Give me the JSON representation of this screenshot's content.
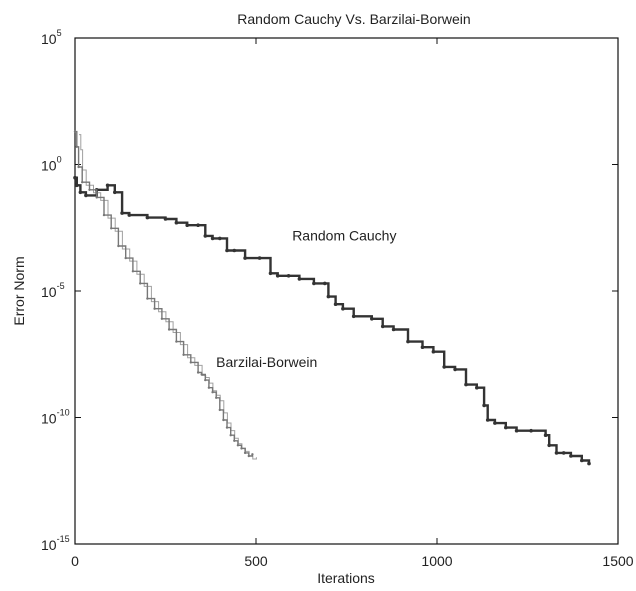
{
  "chart_data": {
    "type": "line",
    "title": "Random Cauchy Vs. Barzilai-Borwein",
    "xlabel": "Iterations",
    "ylabel": "Error Norm",
    "xlim": [
      0,
      1500
    ],
    "ylim": [
      1e-15,
      100000.0
    ],
    "yscale": "log",
    "x_ticks": [
      {
        "value": 0,
        "label": "0"
      },
      {
        "value": 500,
        "label": "500"
      },
      {
        "value": 1000,
        "label": "1000"
      },
      {
        "value": 1500,
        "label": "1500"
      }
    ],
    "y_ticks": [
      {
        "value": 100000.0,
        "base": "10",
        "exp": "5"
      },
      {
        "value": 1,
        "base": "10",
        "exp": "0"
      },
      {
        "value": 1e-05,
        "base": "10",
        "exp": "-5"
      },
      {
        "value": 1e-10,
        "base": "10",
        "exp": "-10"
      },
      {
        "value": 1e-15,
        "base": "10",
        "exp": "-15"
      }
    ],
    "grid": false,
    "series": [
      {
        "name": "Random Cauchy",
        "color": "#333333",
        "label_at": {
          "x": 600,
          "y": 0.001
        },
        "x": [
          0,
          5,
          15,
          30,
          60,
          90,
          110,
          130,
          150,
          200,
          250,
          280,
          310,
          340,
          360,
          380,
          400,
          420,
          440,
          470,
          510,
          540,
          560,
          590,
          620,
          660,
          690,
          700,
          720,
          740,
          770,
          820,
          850,
          880,
          920,
          960,
          990,
          1020,
          1050,
          1080,
          1110,
          1130,
          1140,
          1160,
          1190,
          1220,
          1260,
          1300,
          1310,
          1330,
          1350,
          1370,
          1400,
          1420
        ],
        "y": [
          0.3,
          0.15,
          0.08,
          0.06,
          0.1,
          0.15,
          0.08,
          0.012,
          0.01,
          0.008,
          0.007,
          0.005,
          0.004,
          0.004,
          0.0015,
          0.0012,
          0.0012,
          0.0004,
          0.0004,
          0.0002,
          0.0002,
          5e-05,
          4e-05,
          4e-05,
          3e-05,
          2e-05,
          2e-05,
          6e-06,
          3e-06,
          2e-06,
          1e-06,
          8e-07,
          4e-07,
          3e-07,
          1e-07,
          6e-08,
          4e-08,
          1e-08,
          8e-09,
          2e-09,
          1.5e-09,
          3e-10,
          8e-11,
          6e-11,
          4e-11,
          3e-11,
          3e-11,
          2e-11,
          8e-12,
          4e-12,
          4e-12,
          3e-12,
          2e-12,
          1.5e-12
        ]
      },
      {
        "name": "Barzilai-Borwein",
        "color": "#777777",
        "label_at": {
          "x": 390,
          "y": 1e-08
        },
        "x": [
          0,
          5,
          10,
          20,
          40,
          60,
          80,
          100,
          120,
          140,
          160,
          180,
          200,
          220,
          240,
          260,
          280,
          300,
          320,
          340,
          350,
          360,
          370,
          380,
          390,
          400,
          410,
          420,
          430,
          440,
          450,
          460,
          470,
          480,
          490
        ],
        "y": [
          20,
          5,
          0.8,
          0.2,
          0.1,
          0.05,
          0.01,
          0.003,
          0.0006,
          0.0002,
          6e-05,
          2e-05,
          5e-06,
          2e-06,
          8e-07,
          3e-07,
          1e-07,
          3e-08,
          1.5e-08,
          6e-09,
          5e-09,
          3e-09,
          1.5e-09,
          1e-09,
          6e-10,
          2e-10,
          8e-11,
          4e-11,
          2e-11,
          1.2e-11,
          8e-12,
          6e-12,
          4e-12,
          3e-12,
          3.5e-12
        ]
      }
    ]
  }
}
